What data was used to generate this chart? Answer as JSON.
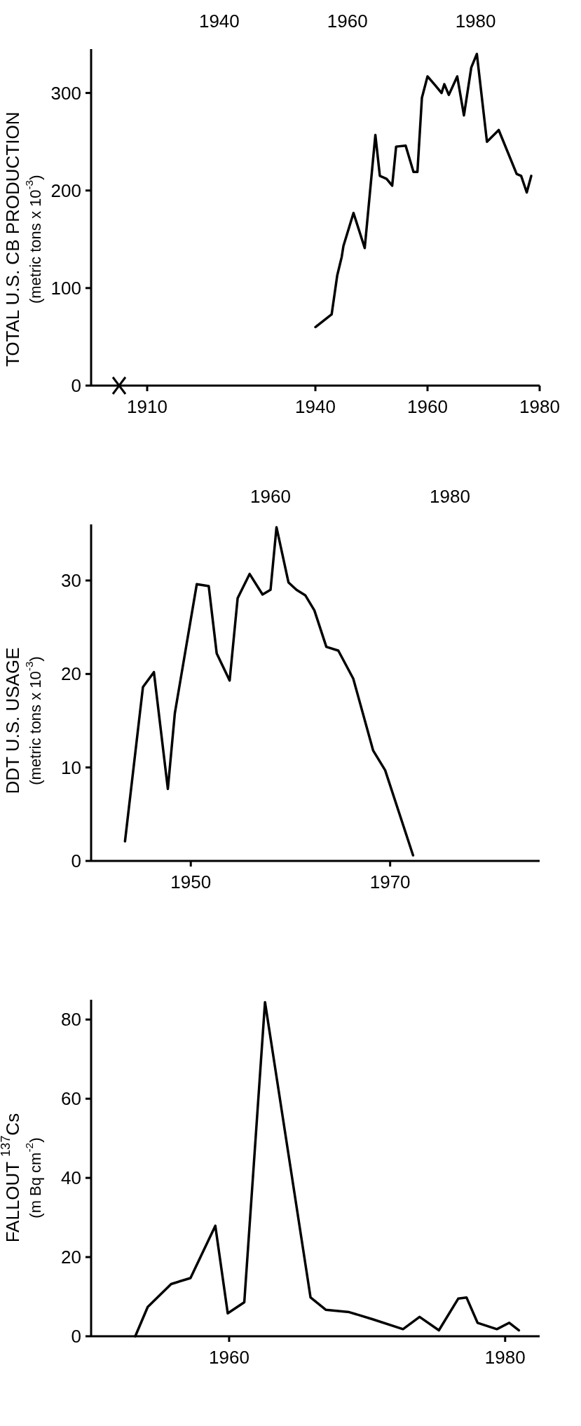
{
  "chart_data": [
    {
      "type": "line",
      "ylabel": "TOTAL U.S. CB PRODUCTION\n(metric tons x 10$^{-3}$)",
      "color": "#000000",
      "x": [
        1940.0,
        1942.9,
        1943.9,
        1944.7,
        1945.0,
        1946.8,
        1948.8,
        1950.7,
        1951.5,
        1952.7,
        1953.7,
        1954.4,
        1956.1,
        1957.5,
        1958.2,
        1959.0,
        1960.0,
        1961.5,
        1962.5,
        1963.0,
        1963.8,
        1965.3,
        1966.5,
        1967.8,
        1968.8,
        1970.6,
        1972.7,
        1975.9,
        1976.7,
        1977.7,
        1978.5
      ],
      "values": [
        60,
        73,
        113,
        132,
        143,
        177,
        141,
        257,
        215,
        212,
        205,
        245,
        246,
        219,
        219,
        295,
        317,
        307,
        300,
        309,
        298,
        317,
        277,
        326,
        340,
        250,
        262,
        217,
        215,
        198,
        215
      ],
      "xlim": [
        1900,
        1980
      ],
      "xticks": [
        1910,
        1940,
        1960,
        1980
      ],
      "ylim": [
        0,
        345
      ],
      "yticks": [
        0,
        100,
        200,
        300
      ],
      "annotations": [
        "1940",
        "1960",
        "1980"
      ]
    },
    {
      "type": "line",
      "ylabel": "DDT U.S. USAGE\n(metric tons x 10$^{-3}$)",
      "color": "#000000",
      "x": [
        1943.4,
        1945.2,
        1946.3,
        1947.7,
        1948.4,
        1950.6,
        1951.8,
        1952.6,
        1953.9,
        1954.7,
        1955.9,
        1957.2,
        1958.0,
        1958.6,
        1959.8,
        1960.6,
        1961.5,
        1962.4,
        1963.6,
        1964.8,
        1966.3,
        1968.3,
        1969.5,
        1972.3
      ],
      "values": [
        2.1,
        18.6,
        20.2,
        7.7,
        15.8,
        29.6,
        29.4,
        22.2,
        19.3,
        28.1,
        30.7,
        28.5,
        29.0,
        35.7,
        29.8,
        29.0,
        28.4,
        26.8,
        22.9,
        22.5,
        19.5,
        11.8,
        9.7,
        0.6
      ],
      "xlim": [
        1940,
        1985
      ],
      "xticks": [
        1950,
        1970
      ],
      "ylim": [
        0,
        36
      ],
      "yticks": [
        0,
        10,
        20,
        30
      ],
      "annotations": [
        "1960",
        "1980"
      ]
    },
    {
      "type": "line",
      "ylabel": "FALLOUT $^{137}$Cs\n(m Bq cm$^{-2}$)",
      "color": "#000000",
      "x": [
        1953.2,
        1954.1,
        1955.8,
        1957.2,
        1959.0,
        1959.9,
        1961.1,
        1962.6,
        1965.9,
        1967.0,
        1968.7,
        1970.4,
        1972.6,
        1973.8,
        1975.2,
        1976.6,
        1977.2,
        1978.0,
        1979.4,
        1980.3,
        1981.0
      ],
      "values": [
        0,
        7.4,
        13.2,
        14.7,
        27.9,
        5.8,
        8.6,
        84.4,
        9.8,
        6.7,
        6.1,
        4.3,
        1.8,
        4.9,
        1.5,
        9.5,
        9.8,
        3.4,
        1.8,
        3.4,
        1.5
      ],
      "xlim": [
        1950,
        1982.5
      ],
      "xticks": [
        1960,
        1980
      ],
      "ylim": [
        0,
        85
      ],
      "yticks": [
        0,
        20,
        40,
        60,
        80
      ]
    }
  ]
}
